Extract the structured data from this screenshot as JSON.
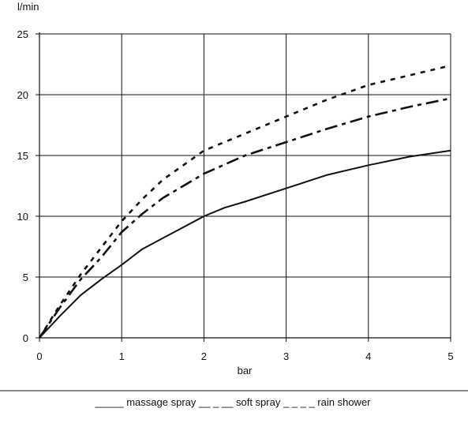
{
  "chart_data": {
    "type": "line",
    "title": "",
    "xlabel": "bar",
    "ylabel": "l/min",
    "xlim": [
      0,
      5
    ],
    "ylim": [
      0,
      25
    ],
    "x_ticks": [
      "0",
      "1",
      "2",
      "3",
      "4",
      "5"
    ],
    "y_ticks": [
      "0",
      "5",
      "10",
      "15",
      "20",
      "25"
    ],
    "grid": true,
    "legend": {
      "placement": "bottom",
      "text": "_____ massage spray __ _ __ soft spray _ _ _ _ rain shower"
    },
    "series": [
      {
        "name": "massage spray",
        "x": [
          0,
          0.25,
          0.5,
          0.75,
          1.0,
          1.25,
          1.5,
          2.0,
          2.25,
          2.5,
          3.0,
          3.5,
          4.0,
          4.5,
          5.0
        ],
        "y": [
          0,
          1.8,
          3.5,
          4.8,
          6.0,
          7.3,
          8.2,
          10.0,
          10.7,
          11.2,
          12.3,
          13.4,
          14.2,
          14.9,
          15.4
        ]
      },
      {
        "name": "soft spray",
        "x": [
          0,
          0.25,
          0.5,
          0.75,
          1.0,
          1.25,
          1.5,
          2.0,
          2.5,
          3.0,
          3.5,
          4.0,
          4.5,
          5.0
        ],
        "y": [
          0,
          2.5,
          4.8,
          6.6,
          8.7,
          10.2,
          11.5,
          13.5,
          15.0,
          16.1,
          17.2,
          18.2,
          19.0,
          19.7
        ]
      },
      {
        "name": "rain shower",
        "x": [
          0,
          0.25,
          0.5,
          0.75,
          1.0,
          1.25,
          1.5,
          2.0,
          2.5,
          3.0,
          3.5,
          4.0,
          4.5,
          5.0
        ],
        "y": [
          0,
          2.7,
          5.2,
          7.4,
          9.6,
          11.4,
          13.0,
          15.4,
          16.8,
          18.2,
          19.6,
          20.8,
          21.6,
          22.4
        ]
      }
    ],
    "colors": {
      "line": "#111111",
      "grid": "#111111",
      "background": "#ffffff"
    }
  }
}
